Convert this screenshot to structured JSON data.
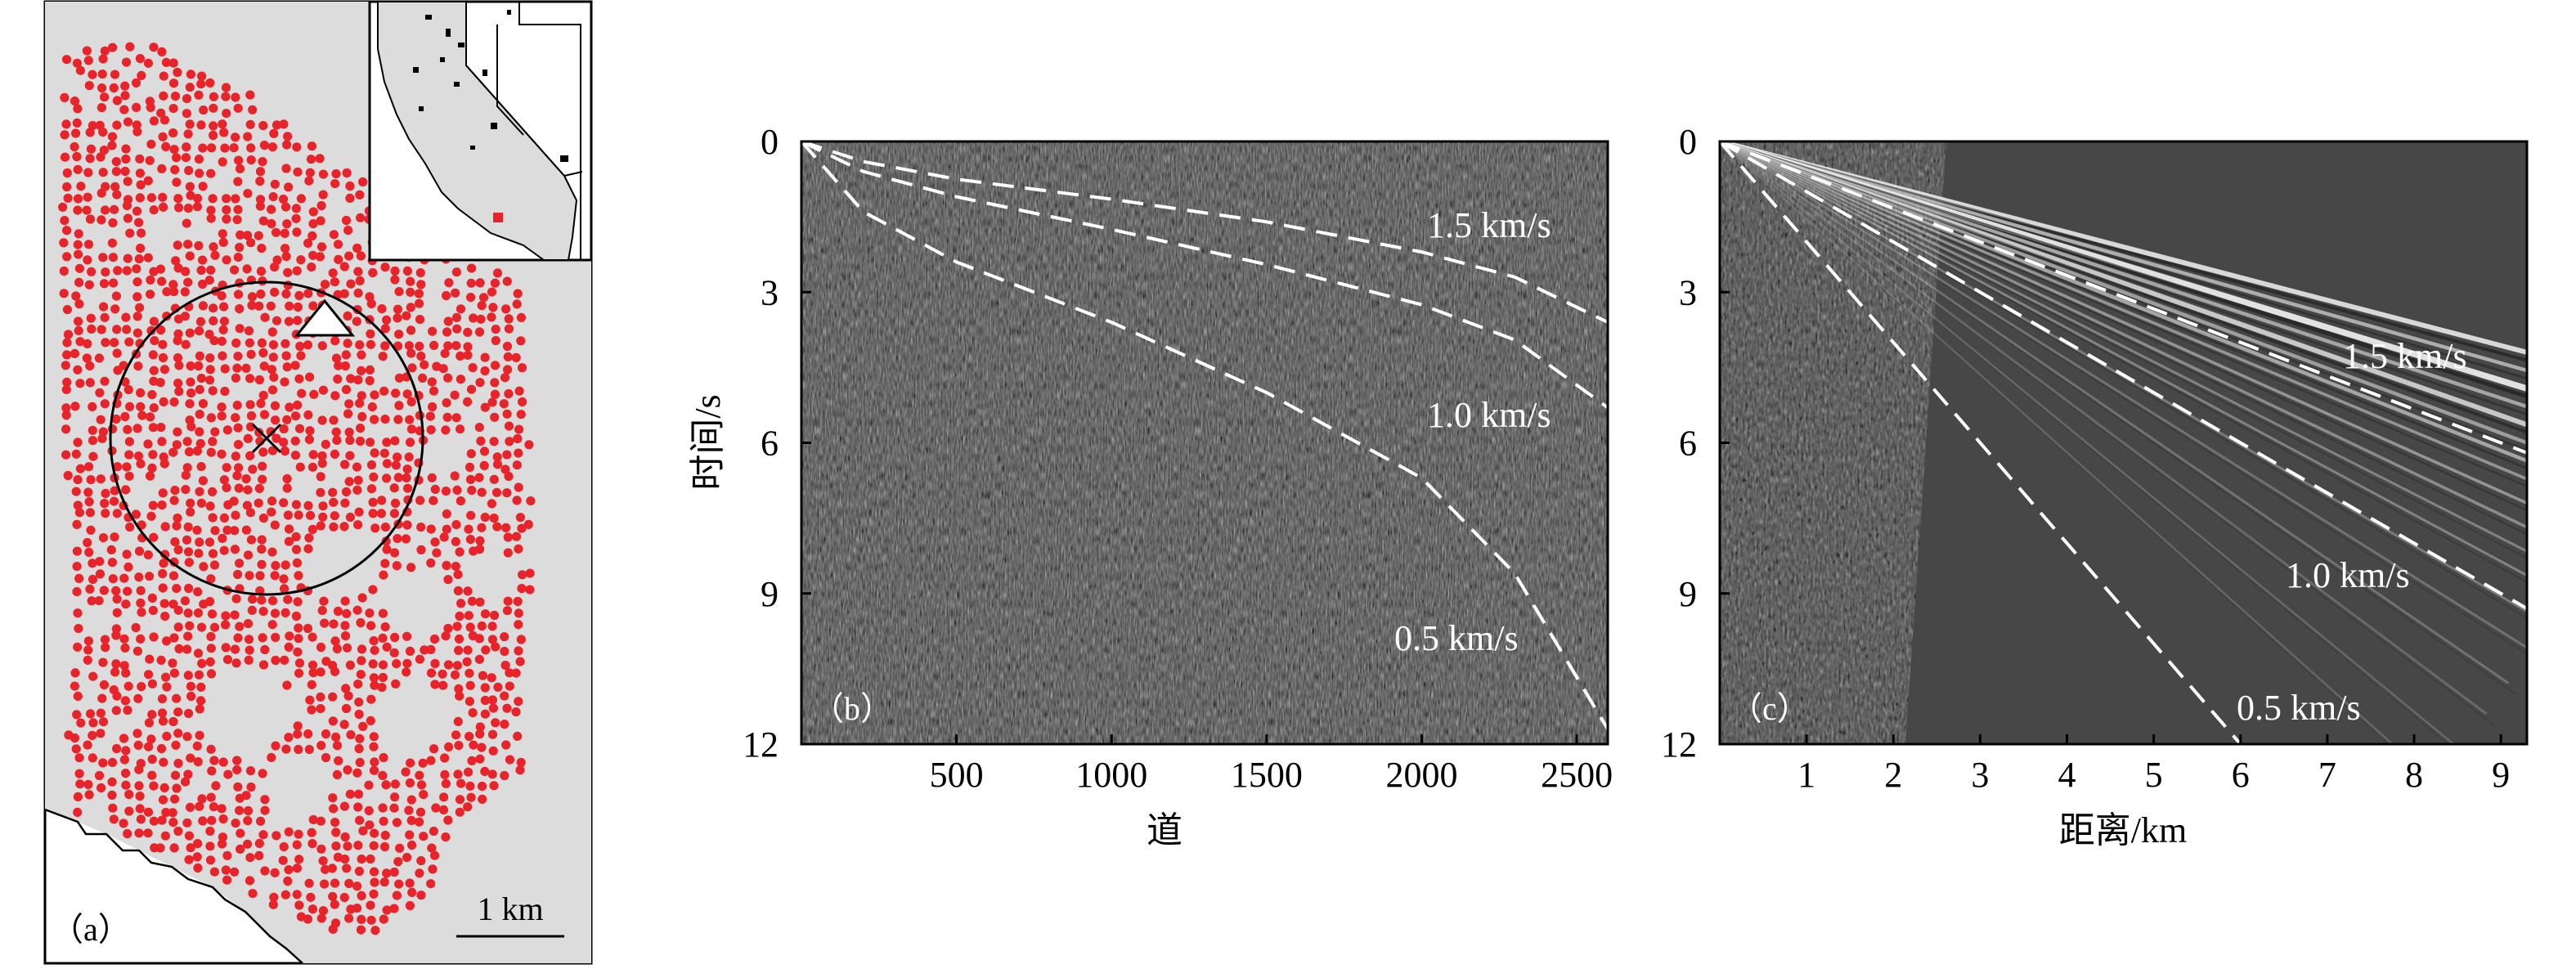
{
  "panel_a": {
    "label": "（a）",
    "scale_bar_label": "1 km",
    "colors": {
      "stations": "#e8232a",
      "land": "#dcdcdc",
      "inset_marker": "#e8232a"
    },
    "markers": {
      "epicenter": "cross",
      "source": "triangle"
    }
  },
  "colors": {
    "seismic_background": "#454545",
    "dashed_curves": "#ffffff",
    "axis": "#000000"
  },
  "chart_data": [
    {
      "type": "line",
      "panel": "（b）",
      "xlabel": "道",
      "ylabel": "时间/s",
      "xlim": [
        0,
        2600
      ],
      "ylim": [
        12,
        0
      ],
      "x_ticks": [
        500,
        1000,
        1500,
        2000,
        2500
      ],
      "y_ticks": [
        0,
        3,
        6,
        9,
        12
      ],
      "background": "seismic record (grayscale noise)",
      "series": [
        {
          "name": "1.5 km/s",
          "x": [
            0,
            200,
            500,
            1000,
            1500,
            2000,
            2300,
            2600
          ],
          "y": [
            0,
            0.4,
            0.75,
            1.15,
            1.6,
            2.2,
            2.7,
            3.6
          ]
        },
        {
          "name": "1.0 km/s",
          "x": [
            0,
            200,
            500,
            1000,
            1500,
            2000,
            2300,
            2600
          ],
          "y": [
            0,
            0.6,
            1.1,
            1.75,
            2.45,
            3.25,
            3.95,
            5.3
          ]
        },
        {
          "name": "0.5 km/s",
          "x": [
            0,
            200,
            500,
            1000,
            1500,
            2000,
            2300,
            2600
          ],
          "y": [
            0,
            1.4,
            2.4,
            3.6,
            5.0,
            6.7,
            8.6,
            11.7
          ]
        }
      ]
    },
    {
      "type": "line",
      "panel": "（c）",
      "xlabel": "距离/km",
      "ylabel": "",
      "xlim": [
        0,
        9.3
      ],
      "ylim": [
        12,
        0
      ],
      "x_ticks": [
        1,
        2,
        3,
        4,
        5,
        6,
        7,
        8,
        9
      ],
      "y_ticks": [
        0,
        3,
        6,
        9,
        12
      ],
      "background": "stacked seismic section (grayscale)",
      "series": [
        {
          "name": "1.5 km/s",
          "x": [
            0,
            9.3
          ],
          "y": [
            0,
            6.2
          ]
        },
        {
          "name": "1.0 km/s",
          "x": [
            0,
            9.3
          ],
          "y": [
            0,
            9.3
          ]
        },
        {
          "name": "0.5 km/s",
          "x": [
            0,
            6
          ],
          "y": [
            0,
            12
          ]
        }
      ]
    }
  ]
}
